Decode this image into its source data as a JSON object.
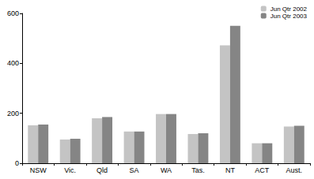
{
  "chart_data": {
    "type": "bar",
    "categories": [
      "NSW",
      "Vic.",
      "Qld",
      "SA",
      "WA",
      "Tas.",
      "NT",
      "ACT",
      "Aust."
    ],
    "series": [
      {
        "name": "Jun Qtr 2002",
        "color": "#c4c4c4",
        "values": [
          152,
          95,
          180,
          127,
          197,
          117,
          472,
          80,
          147
        ]
      },
      {
        "name": "Jun Qtr 2003",
        "color": "#858585",
        "values": [
          155,
          98,
          185,
          127,
          197,
          120,
          550,
          80,
          150
        ]
      }
    ],
    "ylim": [
      0,
      600
    ],
    "yticks": [
      0,
      200,
      400,
      600
    ],
    "grid": false,
    "legend": "top-right"
  }
}
